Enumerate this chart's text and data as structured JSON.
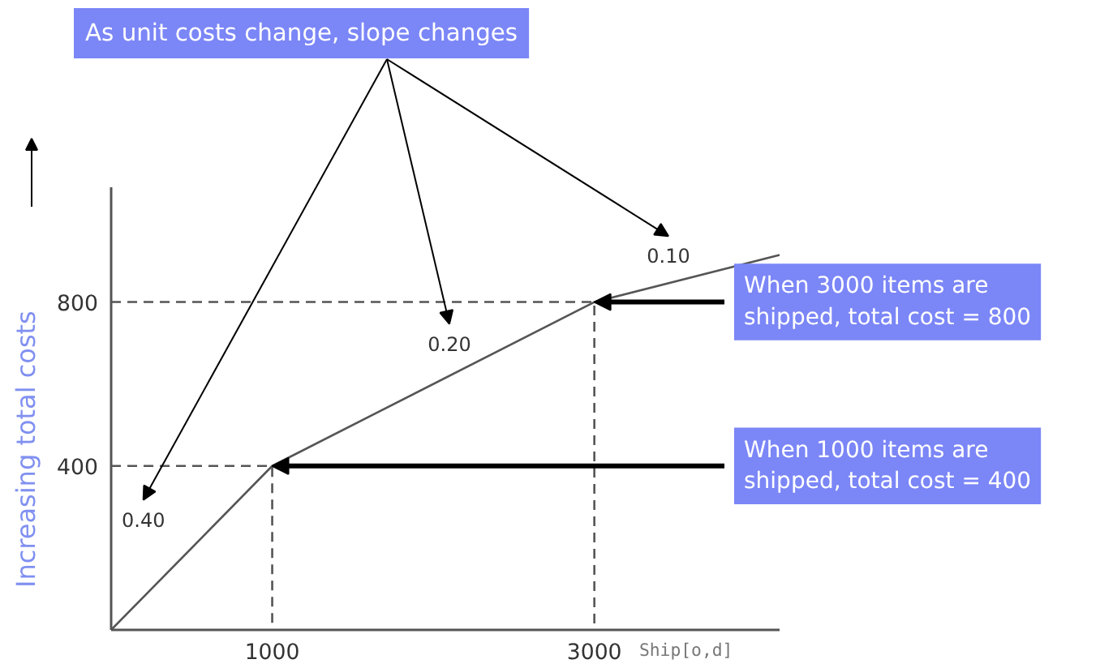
{
  "chart_data": {
    "type": "line",
    "title": "As unit costs change, slope changes",
    "xlabel": "Ship[o,d]",
    "ylabel": "Increasing total costs",
    "series": [
      {
        "color": "#555555",
        "values": [
          0,
          400,
          800,
          915
        ],
        "x": [
          0,
          1000,
          3000,
          4150
        ]
      },
      {
        "type": "line",
        "line_style": "dashed",
        "color": "#555555",
        "x": [
          0,
          1000,
          1000
        ],
        "values": [
          400,
          400,
          0
        ]
      },
      {
        "type": "line",
        "line_style": "dashed",
        "color": "#555555",
        "x": [
          0,
          3000,
          3000
        ],
        "values": [
          800,
          800,
          0
        ]
      }
    ],
    "annotations": [
      "0.40",
      "0.20",
      "0.10",
      {
        "text": "When 3000 items are shipped, total cost = 800",
        "x": 3000,
        "y": 800
      },
      {
        "text": "When 1000 items are shipped, total cost = 400",
        "x": 1000,
        "y": 400
      }
    ],
    "xlim": [
      0,
      4150
    ],
    "ylim": [
      0,
      1080
    ],
    "xticks": [
      1000,
      3000
    ],
    "yticks": [
      400,
      800
    ],
    "grid": false,
    "marker": "none"
  }
}
